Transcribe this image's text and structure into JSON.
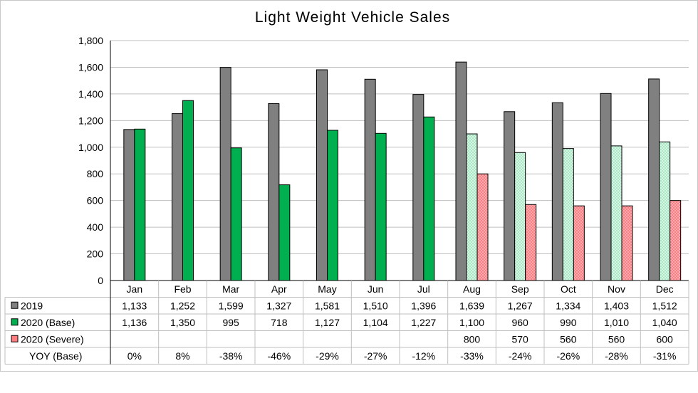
{
  "chart_data": {
    "type": "bar",
    "title": "Light Weight Vehicle Sales",
    "xlabel": "",
    "ylabel": "",
    "ylim": [
      0,
      1800
    ],
    "yticks": [
      0,
      200,
      400,
      600,
      800,
      1000,
      1200,
      1400,
      1600,
      1800
    ],
    "ytick_labels": [
      "0",
      "200",
      "400",
      "600",
      "800",
      "1,000",
      "1,200",
      "1,400",
      "1,600",
      "1,800"
    ],
    "grid": true,
    "legend": "data-table",
    "categories": [
      "Jan",
      "Feb",
      "Mar",
      "Apr",
      "May",
      "Jun",
      "Jul",
      "Aug",
      "Sep",
      "Oct",
      "Nov",
      "Dec"
    ],
    "series": [
      {
        "name": "2019",
        "color": "#808080",
        "values": [
          1133,
          1252,
          1599,
          1327,
          1581,
          1510,
          1396,
          1639,
          1267,
          1334,
          1403,
          1512
        ],
        "labels": [
          "1,133",
          "1,252",
          "1,599",
          "1,327",
          "1,581",
          "1,510",
          "1,396",
          "1,639",
          "1,267",
          "1,334",
          "1,403",
          "1,512"
        ]
      },
      {
        "name": "2020 (Base)",
        "color": "#00b050",
        "forecast_color": "#a6e9c4",
        "forecast_from_index": 7,
        "values": [
          1136,
          1350,
          995,
          718,
          1127,
          1104,
          1227,
          1100,
          960,
          990,
          1010,
          1040
        ],
        "labels": [
          "1,136",
          "1,350",
          "995",
          "718",
          "1,127",
          "1,104",
          "1,227",
          "1,100",
          "960",
          "990",
          "1,010",
          "1,040"
        ]
      },
      {
        "name": "2020 (Severe)",
        "color": "#ff7c80",
        "values": [
          null,
          null,
          null,
          null,
          null,
          null,
          null,
          800,
          570,
          560,
          560,
          600
        ],
        "labels": [
          "",
          "",
          "",
          "",
          "",
          "",
          "",
          "800",
          "570",
          "560",
          "560",
          "600"
        ]
      }
    ],
    "table_rows": [
      {
        "name": "YOY (Base)",
        "values": [
          0,
          8,
          -38,
          -46,
          -29,
          -27,
          -12,
          -33,
          -24,
          -26,
          -28,
          -31
        ],
        "labels": [
          "0%",
          "8%",
          "-38%",
          "-46%",
          "-29%",
          "-27%",
          "-12%",
          "-33%",
          "-24%",
          "-26%",
          "-28%",
          "-31%"
        ]
      }
    ]
  }
}
